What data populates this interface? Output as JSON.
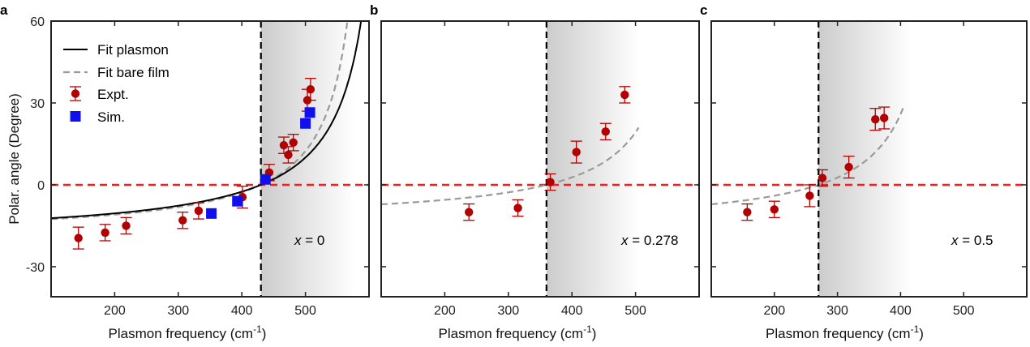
{
  "chart_data": [
    {
      "type": "scatter",
      "panel_label": "a",
      "xlabel": "Plasmon frequency (cm",
      "xlabel_sup": "-1",
      "xlabel_close": ")",
      "ylabel": "Polar. angle (Degree)",
      "xlim": [
        100,
        600
      ],
      "ylim": [
        -41,
        60
      ],
      "xticks": [
        200,
        300,
        400,
        500
      ],
      "yticks": [
        -30,
        0,
        30,
        60
      ],
      "annotation": {
        "var": "x",
        "text": " = 0"
      },
      "vline": 430,
      "hline": 0,
      "legend": {
        "placement": "top-left",
        "fit_plasmon": "Fit plasmon",
        "fit_bare": "Fit bare film",
        "expt": "Expt.",
        "sim": "Sim."
      },
      "fit_plasmon": {
        "pole": 640,
        "scale": 4200
      },
      "fit_bare": {
        "pole": 610,
        "scale": 3500
      },
      "expt": [
        {
          "x": 143,
          "y": -19.5,
          "err": 4
        },
        {
          "x": 185,
          "y": -17.5,
          "err": 3
        },
        {
          "x": 218,
          "y": -15.0,
          "err": 3
        },
        {
          "x": 307,
          "y": -13.0,
          "err": 3
        },
        {
          "x": 332,
          "y": -9.5,
          "err": 3
        },
        {
          "x": 401,
          "y": -4.5,
          "err": 4
        },
        {
          "x": 443,
          "y": 4.5,
          "err": 3
        },
        {
          "x": 466,
          "y": 14.5,
          "err": 3
        },
        {
          "x": 473,
          "y": 11.0,
          "err": 3
        },
        {
          "x": 481,
          "y": 15.5,
          "err": 3
        },
        {
          "x": 503,
          "y": 31.0,
          "err": 4
        },
        {
          "x": 508,
          "y": 35.0,
          "err": 4
        }
      ],
      "sim": [
        {
          "x": 352,
          "y": -10.5
        },
        {
          "x": 393,
          "y": -6.0
        },
        {
          "x": 437,
          "y": 2.0
        },
        {
          "x": 500,
          "y": 22.5
        },
        {
          "x": 507,
          "y": 26.5
        }
      ]
    },
    {
      "type": "scatter",
      "panel_label": "b",
      "xlabel": "Plasmon frequency (cm",
      "xlabel_sup": "-1",
      "xlabel_close": ")",
      "xlim": [
        100,
        600
      ],
      "ylim": [
        -41,
        60
      ],
      "xticks": [
        200,
        300,
        400,
        500
      ],
      "annotation": {
        "var": "x",
        "text": " = 0.278"
      },
      "vline": 360,
      "hline": 0,
      "fit_bare": {
        "pole": 600,
        "scale": 3300,
        "xmax": 505
      },
      "expt": [
        {
          "x": 238,
          "y": -10.0,
          "err": 3
        },
        {
          "x": 315,
          "y": -8.5,
          "err": 3
        },
        {
          "x": 366,
          "y": 1.0,
          "err": 3
        },
        {
          "x": 407,
          "y": 12.0,
          "err": 4
        },
        {
          "x": 453,
          "y": 19.5,
          "err": 3
        },
        {
          "x": 483,
          "y": 33.0,
          "err": 3
        }
      ]
    },
    {
      "type": "scatter",
      "panel_label": "c",
      "xlabel": "Plasmon frequency (cm",
      "xlabel_sup": "-1",
      "xlabel_close": ")",
      "xlim": [
        100,
        600
      ],
      "ylim": [
        -41,
        60
      ],
      "xticks": [
        200,
        300,
        400,
        500
      ],
      "annotation": {
        "var": "x",
        "text": " = 0.5"
      },
      "vline": 270,
      "hline": 0,
      "fit_bare": {
        "pole": 480,
        "scale": 3350,
        "xmax": 405
      },
      "expt": [
        {
          "x": 157,
          "y": -10.0,
          "err": 3
        },
        {
          "x": 200,
          "y": -9.0,
          "err": 3
        },
        {
          "x": 256,
          "y": -4.0,
          "err": 4
        },
        {
          "x": 276,
          "y": 2.5,
          "err": 3
        },
        {
          "x": 318,
          "y": 6.5,
          "err": 4
        },
        {
          "x": 360,
          "y": 24.0,
          "err": 4
        },
        {
          "x": 374,
          "y": 24.5,
          "err": 4
        }
      ]
    }
  ],
  "colors": {
    "expt": "#b30000",
    "sim": "#1010ee",
    "fit_plasmon": "#000000",
    "fit_bare": "#9a9a9a",
    "hline": "#ff1a1a",
    "shade": "#d2d2d2"
  }
}
